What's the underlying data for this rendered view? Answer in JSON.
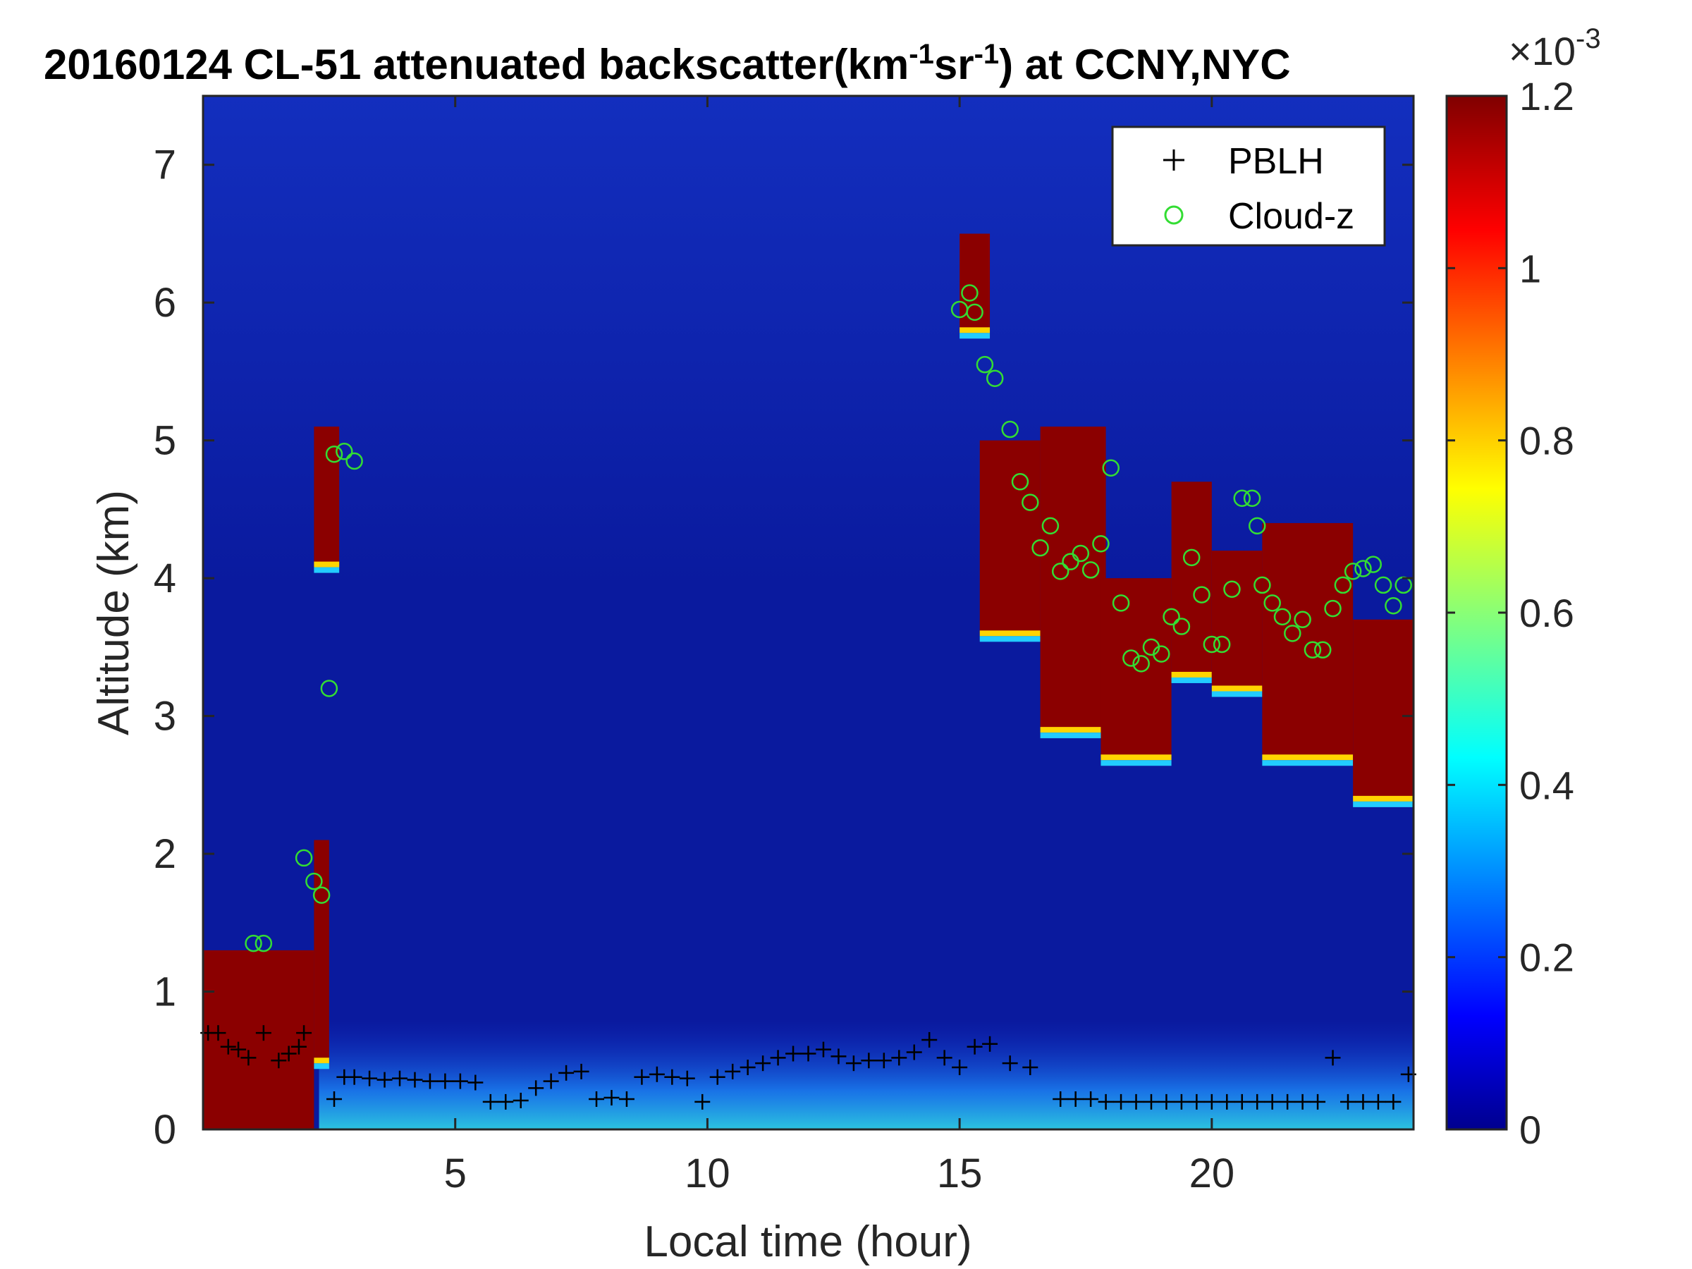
{
  "chart_data": {
    "type": "heatmap",
    "title": {
      "prefix": "20160124  CL-51 attenuated backscatter(km",
      "sup1": "-1",
      "middle": "sr",
      "sup2": "-1",
      "suffix": ") at CCNY,NYC"
    },
    "xlabel": "Local time (hour)",
    "ylabel": "Altitude (km)",
    "xlim": [
      0,
      24
    ],
    "ylim": [
      0,
      7.5
    ],
    "xticks": [
      5,
      10,
      15,
      20
    ],
    "yticks": [
      0,
      1,
      2,
      3,
      4,
      5,
      6,
      7
    ],
    "colorbar": {
      "colormap": "jet",
      "range": [
        0,
        0.0012
      ],
      "ticks": [
        "0",
        "0.2",
        "0.4",
        "0.6",
        "0.8",
        "1",
        "1.2"
      ],
      "tick_values": [
        0,
        0.2,
        0.4,
        0.6,
        0.8,
        1.0,
        1.2
      ],
      "exponent_base": "×10",
      "exponent": "-3"
    },
    "legend": {
      "placement": "top-right",
      "entries": [
        {
          "label": "PBLH",
          "marker": "plus",
          "color": "#000000"
        },
        {
          "label": "Cloud-z",
          "marker": "circle",
          "color": "#33dd33"
        }
      ]
    },
    "background_color": "#0a1a9e",
    "cloud_regions": [
      {
        "x0": 0.0,
        "x1": 2.2,
        "y0": 0.0,
        "y1": 1.3
      },
      {
        "x0": 2.2,
        "x1": 2.5,
        "y0": 0.5,
        "y1": 2.1
      },
      {
        "x0": 2.2,
        "x1": 2.7,
        "y0": 4.1,
        "y1": 5.1
      },
      {
        "x0": 15.0,
        "x1": 15.6,
        "y0": 5.8,
        "y1": 6.5
      },
      {
        "x0": 15.4,
        "x1": 16.6,
        "y0": 3.6,
        "y1": 5.0
      },
      {
        "x0": 16.6,
        "x1": 17.9,
        "y0": 2.9,
        "y1": 5.1
      },
      {
        "x0": 17.8,
        "x1": 19.2,
        "y0": 2.7,
        "y1": 4.0
      },
      {
        "x0": 19.2,
        "x1": 20.0,
        "y0": 3.3,
        "y1": 4.7
      },
      {
        "x0": 20.0,
        "x1": 21.0,
        "y0": 3.2,
        "y1": 4.2
      },
      {
        "x0": 21.0,
        "x1": 22.8,
        "y0": 2.7,
        "y1": 4.4
      },
      {
        "x0": 22.8,
        "x1": 24.0,
        "y0": 2.4,
        "y1": 3.7
      }
    ],
    "aerosol_layer": {
      "x0": 2.3,
      "x1": 24.0,
      "y0": 0.0,
      "y1": 0.8
    },
    "series": [
      {
        "name": "PBLH",
        "marker": "plus",
        "points": [
          [
            0.1,
            0.7
          ],
          [
            0.3,
            0.7
          ],
          [
            0.5,
            0.6
          ],
          [
            0.7,
            0.58
          ],
          [
            0.9,
            0.52
          ],
          [
            1.2,
            0.7
          ],
          [
            1.5,
            0.5
          ],
          [
            1.7,
            0.55
          ],
          [
            1.9,
            0.6
          ],
          [
            2.0,
            0.7
          ],
          [
            2.6,
            0.22
          ],
          [
            2.8,
            0.38
          ],
          [
            3.0,
            0.38
          ],
          [
            3.3,
            0.37
          ],
          [
            3.6,
            0.36
          ],
          [
            3.9,
            0.37
          ],
          [
            4.2,
            0.36
          ],
          [
            4.5,
            0.35
          ],
          [
            4.8,
            0.35
          ],
          [
            5.1,
            0.35
          ],
          [
            5.4,
            0.34
          ],
          [
            5.7,
            0.2
          ],
          [
            6.0,
            0.2
          ],
          [
            6.3,
            0.21
          ],
          [
            6.6,
            0.3
          ],
          [
            6.9,
            0.35
          ],
          [
            7.2,
            0.41
          ],
          [
            7.5,
            0.42
          ],
          [
            7.8,
            0.22
          ],
          [
            8.1,
            0.23
          ],
          [
            8.4,
            0.22
          ],
          [
            8.7,
            0.38
          ],
          [
            9.0,
            0.4
          ],
          [
            9.3,
            0.38
          ],
          [
            9.6,
            0.37
          ],
          [
            9.9,
            0.2
          ],
          [
            10.2,
            0.38
          ],
          [
            10.5,
            0.42
          ],
          [
            10.8,
            0.45
          ],
          [
            11.1,
            0.48
          ],
          [
            11.4,
            0.52
          ],
          [
            11.7,
            0.55
          ],
          [
            12.0,
            0.55
          ],
          [
            12.3,
            0.58
          ],
          [
            12.6,
            0.53
          ],
          [
            12.9,
            0.48
          ],
          [
            13.2,
            0.5
          ],
          [
            13.5,
            0.5
          ],
          [
            13.8,
            0.52
          ],
          [
            14.1,
            0.56
          ],
          [
            14.4,
            0.65
          ],
          [
            14.7,
            0.52
          ],
          [
            15.0,
            0.45
          ],
          [
            15.3,
            0.6
          ],
          [
            15.6,
            0.62
          ],
          [
            16.0,
            0.48
          ],
          [
            16.4,
            0.45
          ],
          [
            17.0,
            0.22
          ],
          [
            17.3,
            0.22
          ],
          [
            17.6,
            0.22
          ],
          [
            17.9,
            0.2
          ],
          [
            18.2,
            0.2
          ],
          [
            18.5,
            0.2
          ],
          [
            18.8,
            0.2
          ],
          [
            19.1,
            0.2
          ],
          [
            19.4,
            0.2
          ],
          [
            19.7,
            0.2
          ],
          [
            20.0,
            0.2
          ],
          [
            20.3,
            0.2
          ],
          [
            20.6,
            0.2
          ],
          [
            20.9,
            0.2
          ],
          [
            21.2,
            0.2
          ],
          [
            21.5,
            0.2
          ],
          [
            21.8,
            0.2
          ],
          [
            22.1,
            0.2
          ],
          [
            22.4,
            0.52
          ],
          [
            22.7,
            0.2
          ],
          [
            23.0,
            0.2
          ],
          [
            23.3,
            0.2
          ],
          [
            23.6,
            0.2
          ],
          [
            23.9,
            0.4
          ]
        ]
      },
      {
        "name": "Cloud-z",
        "marker": "circle",
        "points": [
          [
            1.0,
            1.35
          ],
          [
            1.2,
            1.35
          ],
          [
            2.0,
            1.97
          ],
          [
            2.2,
            1.8
          ],
          [
            2.35,
            1.7
          ],
          [
            2.5,
            3.2
          ],
          [
            2.6,
            4.9
          ],
          [
            2.8,
            4.92
          ],
          [
            3.0,
            4.85
          ],
          [
            15.0,
            5.95
          ],
          [
            15.2,
            6.07
          ],
          [
            15.3,
            5.93
          ],
          [
            15.5,
            5.55
          ],
          [
            15.7,
            5.45
          ],
          [
            16.0,
            5.08
          ],
          [
            16.2,
            4.7
          ],
          [
            16.4,
            4.55
          ],
          [
            16.6,
            4.22
          ],
          [
            16.8,
            4.38
          ],
          [
            17.0,
            4.05
          ],
          [
            17.2,
            4.12
          ],
          [
            17.4,
            4.18
          ],
          [
            17.6,
            4.06
          ],
          [
            17.8,
            4.25
          ],
          [
            18.0,
            4.8
          ],
          [
            18.2,
            3.82
          ],
          [
            18.4,
            3.42
          ],
          [
            18.6,
            3.38
          ],
          [
            18.8,
            3.5
          ],
          [
            19.0,
            3.45
          ],
          [
            19.2,
            3.72
          ],
          [
            19.4,
            3.65
          ],
          [
            19.6,
            4.15
          ],
          [
            19.8,
            3.88
          ],
          [
            20.0,
            3.52
          ],
          [
            20.2,
            3.52
          ],
          [
            20.4,
            3.92
          ],
          [
            20.6,
            4.58
          ],
          [
            20.8,
            4.58
          ],
          [
            20.9,
            4.38
          ],
          [
            21.0,
            3.95
          ],
          [
            21.2,
            3.82
          ],
          [
            21.4,
            3.72
          ],
          [
            21.6,
            3.6
          ],
          [
            21.8,
            3.7
          ],
          [
            22.0,
            3.48
          ],
          [
            22.2,
            3.48
          ],
          [
            22.4,
            3.78
          ],
          [
            22.6,
            3.95
          ],
          [
            22.8,
            4.05
          ],
          [
            23.0,
            4.07
          ],
          [
            23.2,
            4.1
          ],
          [
            23.4,
            3.95
          ],
          [
            23.6,
            3.8
          ],
          [
            23.8,
            3.95
          ]
        ]
      }
    ]
  }
}
